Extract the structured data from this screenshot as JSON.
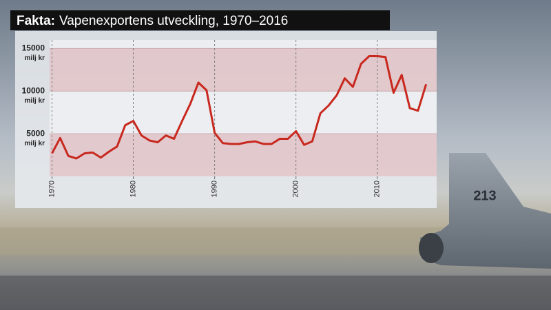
{
  "chart_data": {
    "type": "line",
    "label": "Fakta:",
    "title": "Vapenexportens utveckling, 1970–2016",
    "y_unit": "milj kr",
    "x": [
      1970,
      1971,
      1972,
      1973,
      1974,
      1975,
      1976,
      1977,
      1978,
      1979,
      1980,
      1981,
      1982,
      1983,
      1984,
      1985,
      1986,
      1987,
      1988,
      1989,
      1990,
      1991,
      1992,
      1993,
      1994,
      1995,
      1996,
      1997,
      1998,
      1999,
      2000,
      2001,
      2002,
      2003,
      2004,
      2005,
      2006,
      2007,
      2008,
      2009,
      2010,
      2011,
      2012,
      2013,
      2014,
      2015,
      2016
    ],
    "series": [
      {
        "color": "#c8281e",
        "values": [
          2700,
          4500,
          2400,
          2100,
          2700,
          2800,
          2200,
          2900,
          3500,
          6000,
          6500,
          4800,
          4200,
          4000,
          4800,
          4400,
          6500,
          8500,
          11000,
          10100,
          5100,
          3900,
          3800,
          3800,
          4000,
          4100,
          3800,
          3800,
          4400,
          4400,
          5300,
          3700,
          4100,
          7400,
          8300,
          9500,
          11500,
          10500,
          13200,
          14100,
          14100,
          14000,
          9800,
          11900,
          8000,
          7700,
          10800
        ]
      }
    ],
    "xlim": [
      1969.7,
      2017.3
    ],
    "xticks": [
      1970,
      1980,
      1990,
      2000,
      2010
    ],
    "ylim": [
      0,
      16000
    ],
    "yticks": [
      5000,
      10000,
      15000
    ],
    "grid": true
  }
}
